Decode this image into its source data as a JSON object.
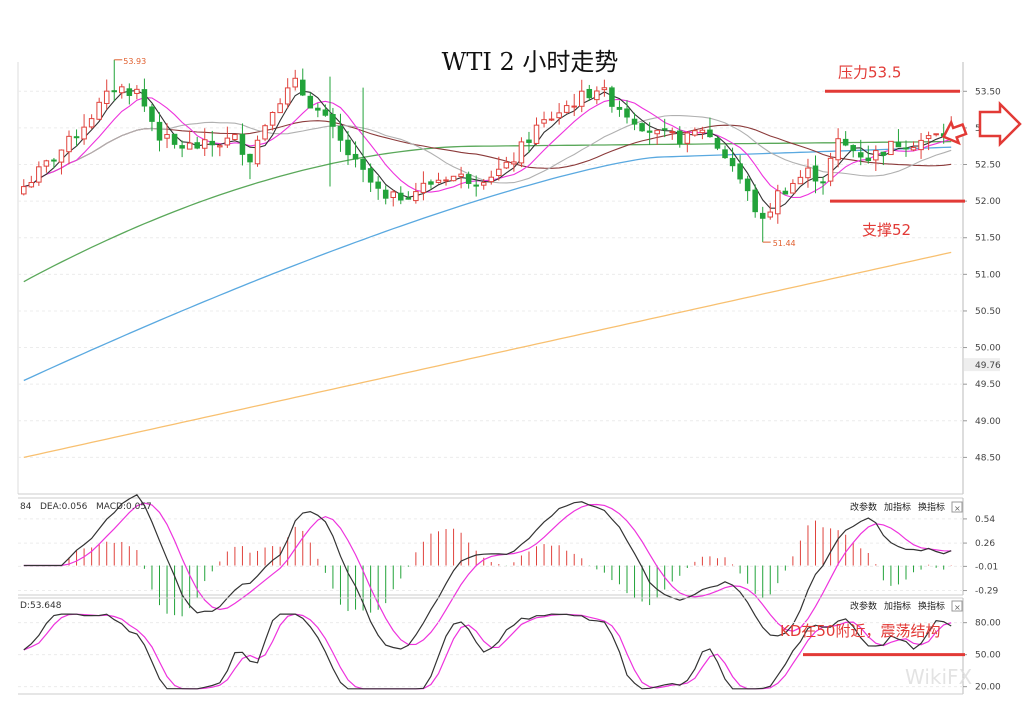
{
  "colors": {
    "up": "#e0433d",
    "down": "#22a33a",
    "ma_short": "#333333",
    "ma_pink": "#ee33dd",
    "ma_gray": "#b0b0b0",
    "ma_brown": "#8b3a3a",
    "ma_green": "#5aa85a",
    "ma_blue": "#5aa9e0",
    "ma_orange": "#f8c070",
    "annotation": "#e23a36",
    "macd_line": "#333333",
    "dea_line": "#ee33dd",
    "k_line": "#333333",
    "d_line": "#ee33dd"
  },
  "chart_data": [
    {
      "type": "candlestick",
      "title": "WTI 2 小时走势",
      "ylim": [
        48.0,
        53.9
      ],
      "y_ticks": [
        48.5,
        49.0,
        49.5,
        50.0,
        50.5,
        51.0,
        51.5,
        52.0,
        52.5,
        53.0,
        53.5
      ],
      "y_tick_labels": [
        "48.50",
        "49.00",
        "49.50",
        "50.00",
        "50.50",
        "51.00",
        "51.50",
        "52.00",
        "52.50",
        "53.00",
        "53.50"
      ],
      "current_price_label": "49.76",
      "annotations": {
        "high_label": "53.93",
        "low_label": "51.44",
        "resistance_label": "压力53.5",
        "resistance_value": 53.5,
        "support_label": "支撑52",
        "support_value": 52.0
      },
      "grid": true,
      "moving_averages": [
        "ma_short",
        "ma_pink",
        "ma_gray",
        "ma_brown",
        "ma_green",
        "ma_blue",
        "ma_orange"
      ]
    },
    {
      "type": "macd",
      "header_prefix": "84",
      "dea_label": "DEA:0.056",
      "macd_label": "MACD:0.057",
      "buttons": [
        "改参数",
        "加指标",
        "换指标"
      ],
      "close_symbol": "×",
      "ylim": [
        -0.33,
        0.62
      ],
      "y_ticks": [
        0.54,
        0.26,
        -0.01,
        -0.29
      ],
      "y_tick_labels": [
        "0.54",
        "0.26",
        "-0.01",
        "-0.29"
      ]
    },
    {
      "type": "kd",
      "header_label": "D:53.648",
      "buttons": [
        "改参数",
        "加指标",
        "换指标"
      ],
      "close_symbol": "×",
      "ylim": [
        15,
        90
      ],
      "y_ticks": [
        80,
        50,
        20
      ],
      "y_tick_labels": [
        "80.00",
        "50.00",
        "20.00"
      ],
      "annotation_label": "KD在50附近，震荡结构",
      "annotation_level": 50
    }
  ],
  "watermark": "WikiFX"
}
